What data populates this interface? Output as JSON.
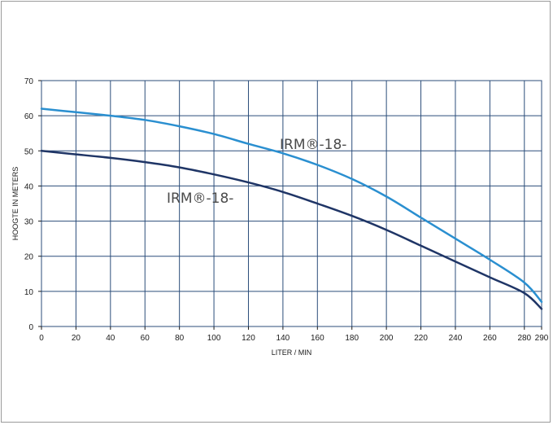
{
  "chart_data": {
    "type": "line",
    "title": "",
    "xlabel": "LITER / MIN",
    "ylabel": "HOOGTE IN METERS",
    "xlim": [
      0,
      290
    ],
    "ylim": [
      0,
      70
    ],
    "x_ticks": [
      0,
      20,
      40,
      60,
      80,
      100,
      120,
      140,
      160,
      180,
      200,
      220,
      240,
      260,
      280,
      290
    ],
    "y_ticks": [
      0,
      10,
      20,
      30,
      40,
      50,
      60,
      70
    ],
    "grid": true,
    "series": [
      {
        "name": "IRM®-18-",
        "color": "#2a8fd0",
        "x": [
          0,
          20,
          40,
          60,
          80,
          100,
          120,
          140,
          160,
          180,
          200,
          220,
          240,
          260,
          280,
          290
        ],
        "y": [
          62,
          61,
          60,
          58.8,
          57,
          54.8,
          52,
          49.3,
          46,
          42,
          37,
          31,
          25,
          19,
          12.5,
          7
        ]
      },
      {
        "name": "IRM®-18-",
        "color": "#1f3566",
        "x": [
          0,
          20,
          40,
          60,
          80,
          100,
          120,
          140,
          160,
          180,
          200,
          220,
          240,
          260,
          280,
          290
        ],
        "y": [
          50,
          49,
          48,
          46.8,
          45.3,
          43.3,
          41,
          38.3,
          35,
          31.5,
          27.5,
          23,
          18.5,
          14,
          9.5,
          5
        ]
      }
    ]
  }
}
